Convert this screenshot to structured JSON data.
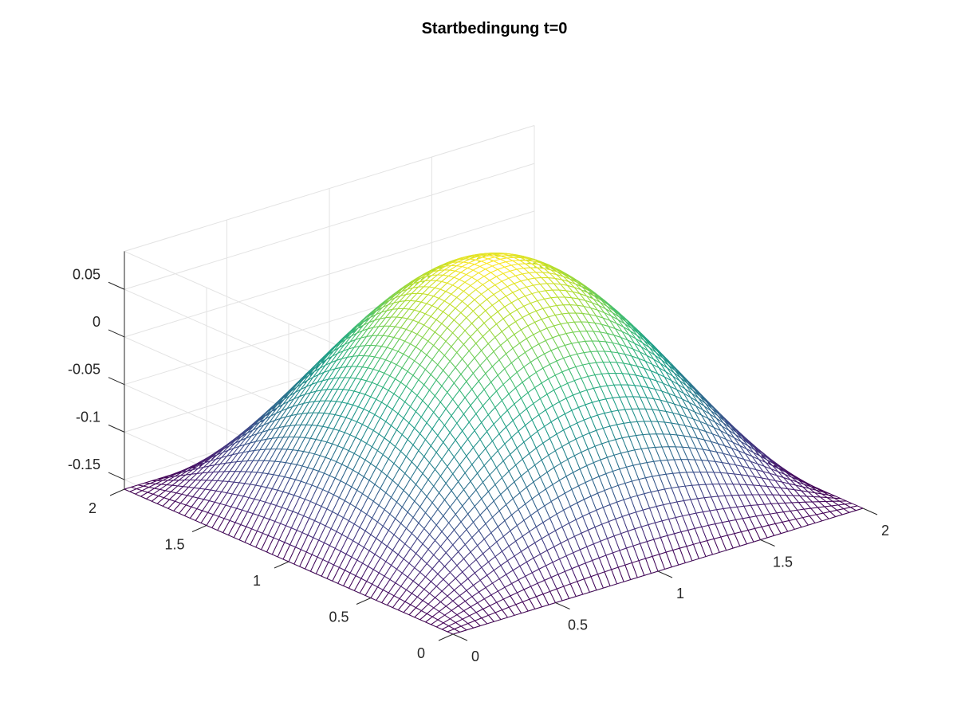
{
  "chart_data": {
    "type": "surface",
    "title": "Startbedingung t=0",
    "xlabel": "",
    "ylabel": "",
    "zlabel": "",
    "function": "z = 0.25*sin(pi*x/2)*sin(pi*y/2) - 0.16",
    "xlim": [
      0,
      2
    ],
    "ylim": [
      0,
      2
    ],
    "zlim": [
      -0.16,
      0.09
    ],
    "grid_points": 61,
    "x_ticks": [
      "0",
      "0.5",
      "1",
      "1.5",
      "2"
    ],
    "y_ticks": [
      "0",
      "0.5",
      "1",
      "1.5",
      "2"
    ],
    "z_ticks": [
      "-0.15",
      "-0.1",
      "-0.05",
      "0",
      "0.05"
    ],
    "x_tick_values": [
      0,
      0.5,
      1,
      1.5,
      2
    ],
    "y_tick_values": [
      0,
      0.5,
      1,
      1.5,
      2
    ],
    "z_tick_values": [
      -0.15,
      -0.1,
      -0.05,
      0,
      0.05
    ],
    "contour_levels": [
      -0.14,
      -0.12,
      -0.1,
      -0.08,
      -0.06,
      -0.04,
      -0.02,
      0.0,
      0.02,
      0.04,
      0.06
    ],
    "contour_on_floor": true,
    "grid": true,
    "colormap": "viridis",
    "colormap_stops": [
      "#440154",
      "#482878",
      "#3e4989",
      "#31688e",
      "#26828e",
      "#1f9e89",
      "#35b779",
      "#6ece58",
      "#b5de2b",
      "#fde725"
    ]
  }
}
